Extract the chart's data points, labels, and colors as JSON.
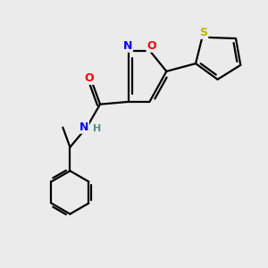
{
  "bg_color": "#ebebeb",
  "bond_color": "#000000",
  "atom_colors": {
    "O": "#ff0000",
    "N": "#0000ff",
    "S": "#b8b800",
    "C": "#000000",
    "H": "#4a9090"
  },
  "figsize": [
    3.0,
    3.0
  ],
  "dpi": 100
}
